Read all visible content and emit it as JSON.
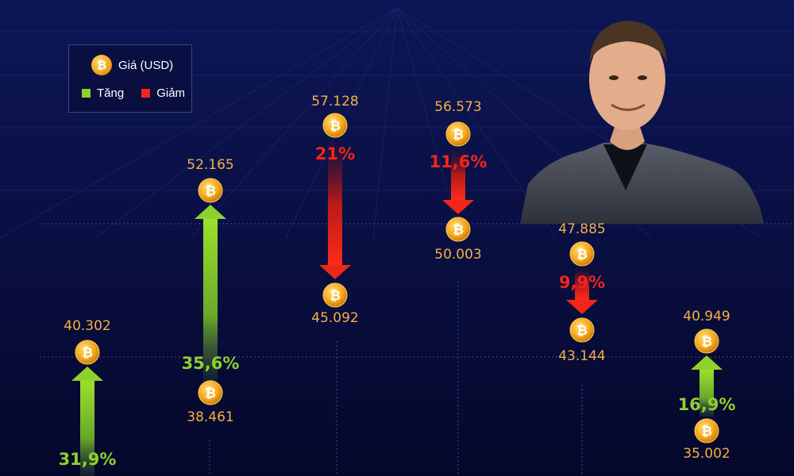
{
  "legend": {
    "price_label": "Giá (USD)",
    "up_label": "Tăng",
    "down_label": "Giảm",
    "up_color": "#8fd12c",
    "down_color": "#f0261a"
  },
  "colors": {
    "background": "#070a30",
    "price_text": "#f5b041",
    "coin": "#f4a21a"
  },
  "chart_data": {
    "type": "bar",
    "moves": [
      {
        "direction": "up",
        "from": null,
        "to": 40.302,
        "to_label": "40.302",
        "from_label": "",
        "percent": "31,9%"
      },
      {
        "direction": "up",
        "from": 38.461,
        "to": 52.165,
        "from_label": "38.461",
        "to_label": "52.165",
        "percent": "35,6%"
      },
      {
        "direction": "down",
        "from": 57.128,
        "to": 45.092,
        "from_label": "57.128",
        "to_label": "45.092",
        "percent": "21%"
      },
      {
        "direction": "down",
        "from": 56.573,
        "to": 50.003,
        "from_label": "56.573",
        "to_label": "50.003",
        "percent": "11,6%"
      },
      {
        "direction": "down",
        "from": 47.885,
        "to": 43.144,
        "from_label": "47.885",
        "to_label": "43.144",
        "percent": "9,9%"
      },
      {
        "direction": "up",
        "from": 35.002,
        "to": 40.949,
        "from_label": "35.002",
        "to_label": "40.949",
        "percent": "16,9%"
      }
    ],
    "unit": "USD"
  }
}
